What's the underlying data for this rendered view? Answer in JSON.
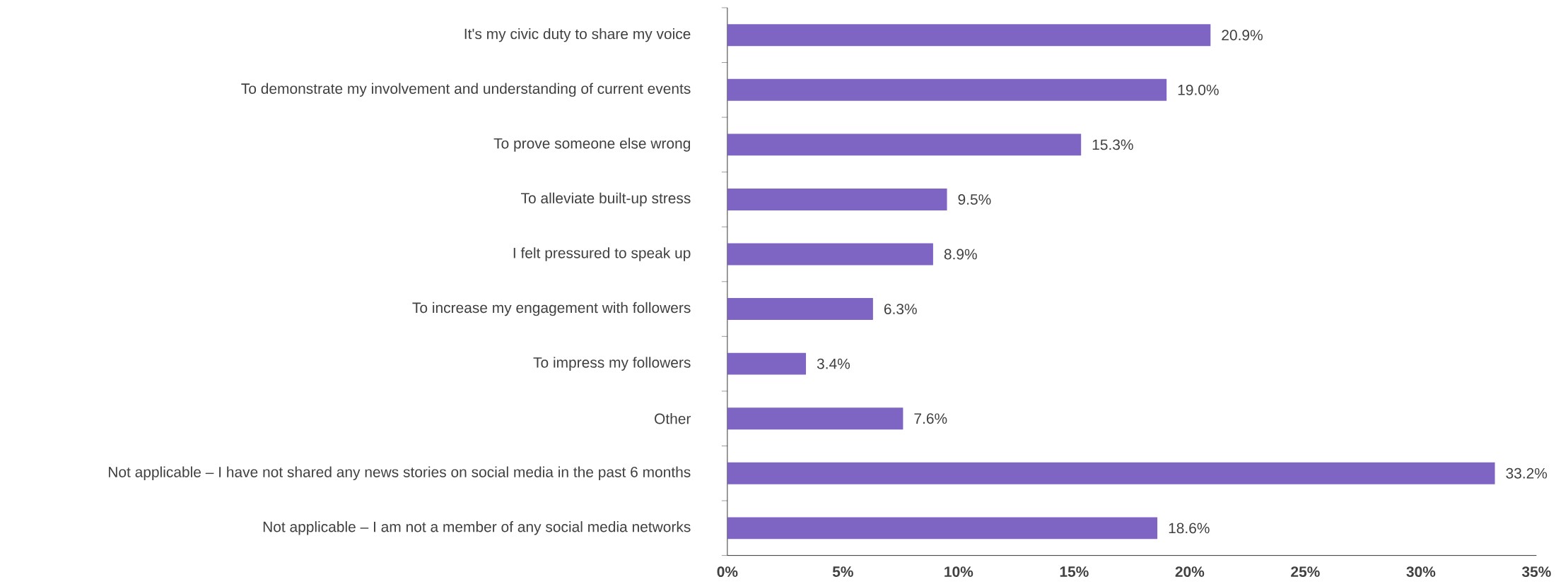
{
  "chart_data": {
    "type": "bar",
    "orientation": "horizontal",
    "categories": [
      "It's my civic duty to share my voice",
      "To demonstrate my involvement and understanding of current events",
      "To prove someone else wrong",
      "To alleviate built-up stress",
      "I felt pressured to speak up",
      "To increase my engagement with followers",
      "To impress my followers",
      "Other",
      "Not applicable – I have not shared any news stories on social media in the past 6 months",
      "Not applicable – I am not a member of any social media networks"
    ],
    "values": [
      20.9,
      19.0,
      15.3,
      9.5,
      8.9,
      6.3,
      3.4,
      7.6,
      33.2,
      18.6
    ],
    "value_labels": [
      "20.9%",
      "19.0%",
      "15.3%",
      "9.5%",
      "8.9%",
      "6.3%",
      "3.4%",
      "7.6%",
      "33.2%",
      "18.6%"
    ],
    "color": "#7e65c3",
    "xlim": [
      0,
      35
    ],
    "xticks": [
      {
        "value": 0,
        "label": "0%"
      },
      {
        "value": 5,
        "label": "5%"
      },
      {
        "value": 10,
        "label": "10%"
      },
      {
        "value": 15,
        "label": "15%"
      },
      {
        "value": 20,
        "label": "20%"
      },
      {
        "value": 25,
        "label": "25%"
      },
      {
        "value": 30,
        "label": "30%"
      },
      {
        "value": 35,
        "label": "35%"
      }
    ],
    "grid": false
  }
}
